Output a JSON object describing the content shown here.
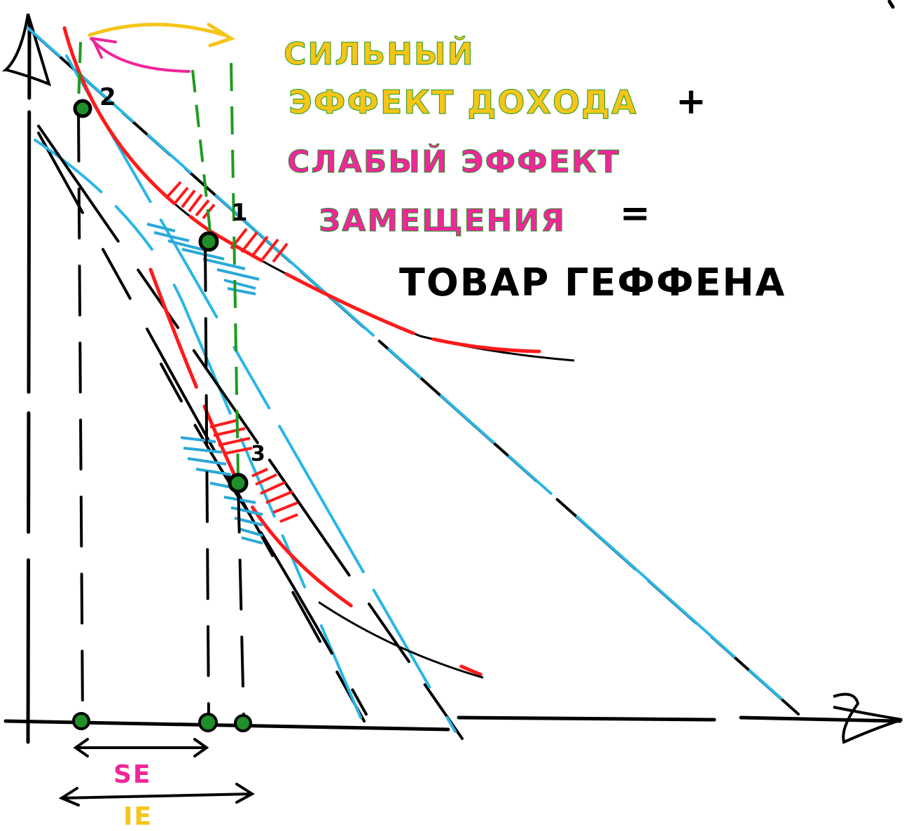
{
  "labels": {
    "point_1": "1",
    "point_2": "2",
    "point_3": "3",
    "title_line1": "СИЛЬНЫЙ",
    "title_line2": "ЭФФЕКТ ДОХОДА",
    "plus": "+",
    "subtitle_line1": "СЛАБЫЙ ЭФФЕКТ",
    "subtitle_line2": "ЗАМЕЩЕНИЯ",
    "equals": "=",
    "conclusion": "ТОВАР ГЕФФЕНА",
    "se": "SE",
    "ie": "IE"
  },
  "colors": {
    "black": "#000000",
    "red": "#ff1a1a",
    "blue": "#29b6e6",
    "shade_blue": "#2aa8d8",
    "green": "#1f9a1f",
    "point_fill": "#1f8f2a",
    "yellow": "#f5c518",
    "pink": "#f0269a"
  }
}
